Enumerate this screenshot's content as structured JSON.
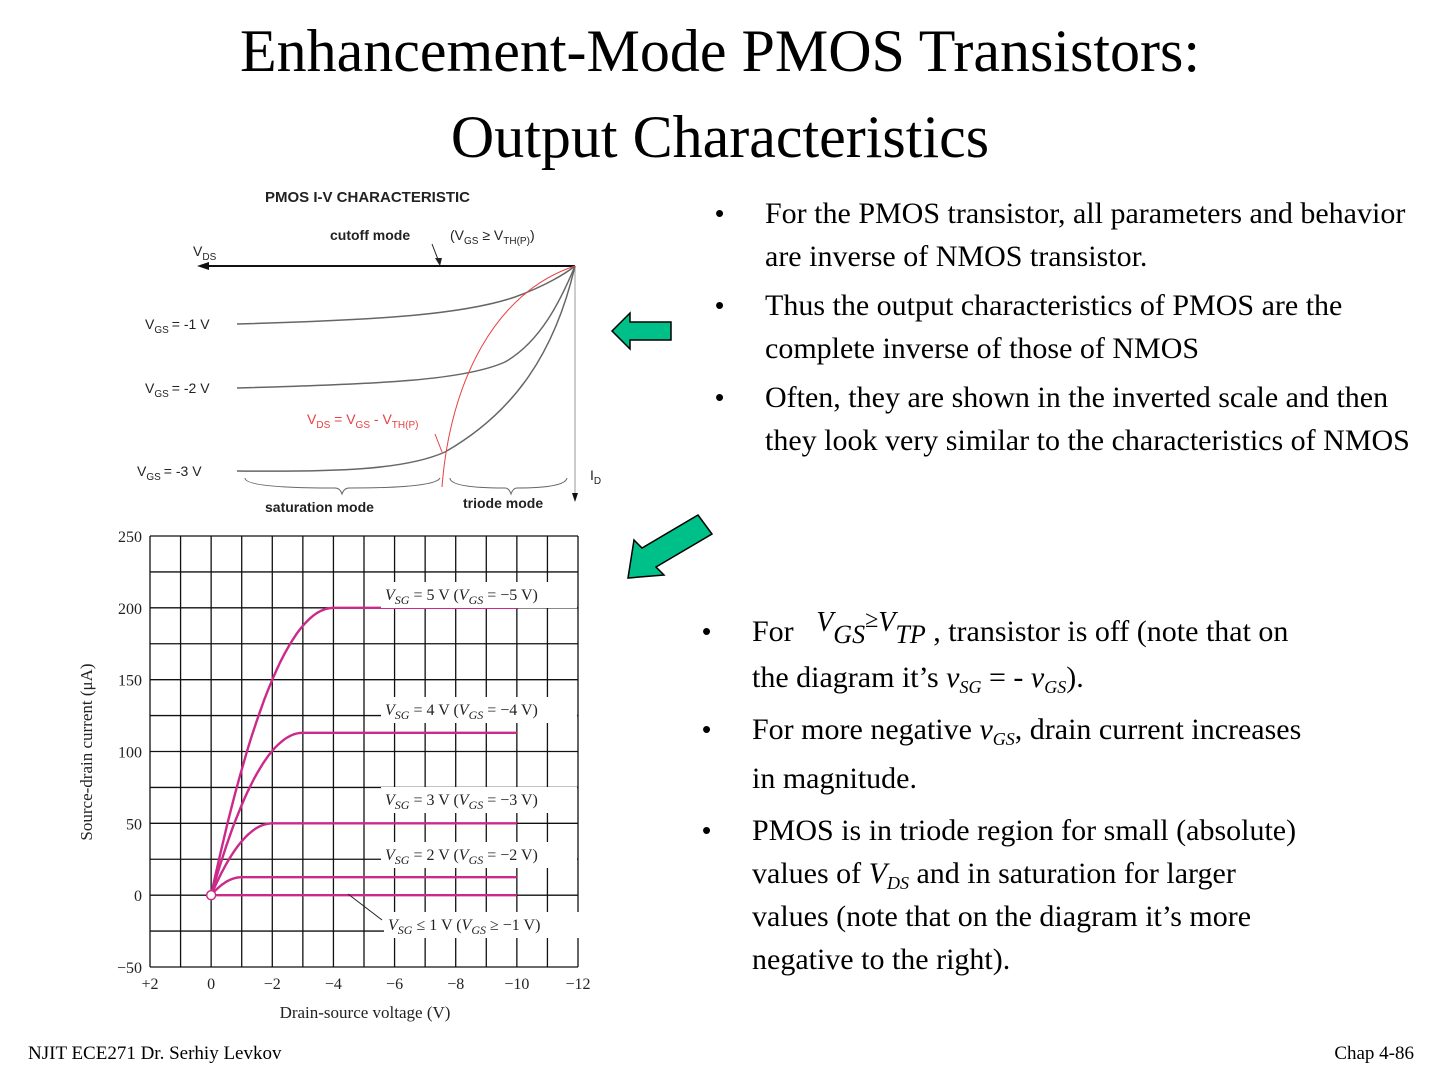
{
  "slide": {
    "title_line1": "Enhancement-Mode PMOS Transistors:",
    "title_line2": "Output Characteristics"
  },
  "bullets_top": [
    "For the PMOS transistor, all parameters and behavior are inverse of  NMOS transistor.",
    "Thus the output characteristics of PMOS are the complete inverse of those of NMOS",
    "Often, they are shown in the inverted scale and then they look very similar to the characteristics of NMOS"
  ],
  "bullets_bottom": {
    "b1_pre": "For",
    "b1_eq_v1": "V",
    "b1_eq_s1": "GS",
    "b1_eq_op": "≥",
    "b1_eq_v2": "V",
    "b1_eq_s2": "TP",
    "b1_post": ", transistor is off (note that on the diagram it’s ",
    "b1_v": "v",
    "b1_vsub": "SG",
    "b1_mid": " = - ",
    "b1_v2": "v",
    "b1_v2sub": "GS",
    "b1_end": ").",
    "b2_pre": "For more negative ",
    "b2_v": "v",
    "b2_vsub": "GS",
    "b2_post": ", drain current increases in magnitude.",
    "b3_pre": "PMOS is in triode region for small (absolute) values of ",
    "b3_v": "V",
    "b3_vsub": "DS",
    "b3_post": " and in saturation for larger values (note that on the diagram it’s more negative to the right)."
  },
  "bullet_glyph": "•",
  "footer": {
    "left": "NJIT  ECE271 Dr. Serhiy Levkov",
    "right": "Chap 4-86"
  },
  "arrows": {
    "color": "#00c08a",
    "outline": "#000000"
  },
  "diagram": {
    "title": "PMOS I-V CHARACTERISTIC",
    "cutoff": "cutoff mode",
    "cutoff_cond": "(V",
    "cutoff_cond_s1": "GS",
    "cutoff_cond_op": " ≥ V",
    "cutoff_cond_s2": "TH(P)",
    "cutoff_cond_end": ")",
    "vds": "V",
    "vds_sub": "DS",
    "id": "I",
    "id_sub": "D",
    "vgs1": "= -1 V",
    "vgs2": "= -2 V",
    "vgs3": "= -3 V",
    "vgs_v": "V",
    "vgs_sub": "GS",
    "boundary_a": "V",
    "boundary_s1": "DS",
    "boundary_b": " = V",
    "boundary_s2": "GS",
    "boundary_c": " - V",
    "boundary_s3": "TH(P)",
    "saturation": "saturation mode",
    "triode": "triode mode",
    "red": "#e84040"
  },
  "chart_data": {
    "type": "line",
    "xlabel": "Drain-source voltage (V)",
    "ylabel": "Source-drain current (μA)",
    "x_ticks": [
      "+2",
      "0",
      "−2",
      "−4",
      "−6",
      "−8",
      "−10",
      "−12"
    ],
    "y_ticks": [
      "250",
      "200",
      "150",
      "100",
      "50",
      "0",
      "−50"
    ],
    "xlim": [
      2,
      -12
    ],
    "ylim": [
      -50,
      250
    ],
    "grid": true,
    "line_color": "#cc2a8a",
    "series": [
      {
        "name": "V_SG = 5 V (V_GS = −5 V)",
        "sat_current": 200,
        "vsat": -4
      },
      {
        "name": "V_SG = 4 V (V_GS = −4 V)",
        "sat_current": 113,
        "vsat": -3
      },
      {
        "name": "V_SG = 3 V (V_GS = −3 V)",
        "sat_current": 50,
        "vsat": -2
      },
      {
        "name": "V_SG = 2 V (V_GS = −2 V)",
        "sat_current": 12.5,
        "vsat": -1
      },
      {
        "name": "V_SG ≤ 1 V (V_GS ≥ −1 V)",
        "sat_current": 0,
        "vsat": 0
      }
    ],
    "series_labels": [
      {
        "vsg": "V",
        "vsg_sub": "SG",
        "a": " = 5 V (",
        "vgs": "V",
        "vgs_sub": "GS",
        "b": " = −5 V)"
      },
      {
        "vsg": "V",
        "vsg_sub": "SG",
        "a": " = 4 V (",
        "vgs": "V",
        "vgs_sub": "GS",
        "b": " = −4 V)"
      },
      {
        "vsg": "V",
        "vsg_sub": "SG",
        "a": " = 3 V (",
        "vgs": "V",
        "vgs_sub": "GS",
        "b": " = −3 V)"
      },
      {
        "vsg": "V",
        "vsg_sub": "SG",
        "a": " = 2 V (",
        "vgs": "V",
        "vgs_sub": "GS",
        "b": " = −2 V)"
      },
      {
        "vsg": "V",
        "vsg_sub": "SG",
        "a": " ≤ 1 V (",
        "vgs": "V",
        "vgs_sub": "GS",
        "b": " ≥ −1 V)"
      }
    ],
    "x_end": -10
  }
}
